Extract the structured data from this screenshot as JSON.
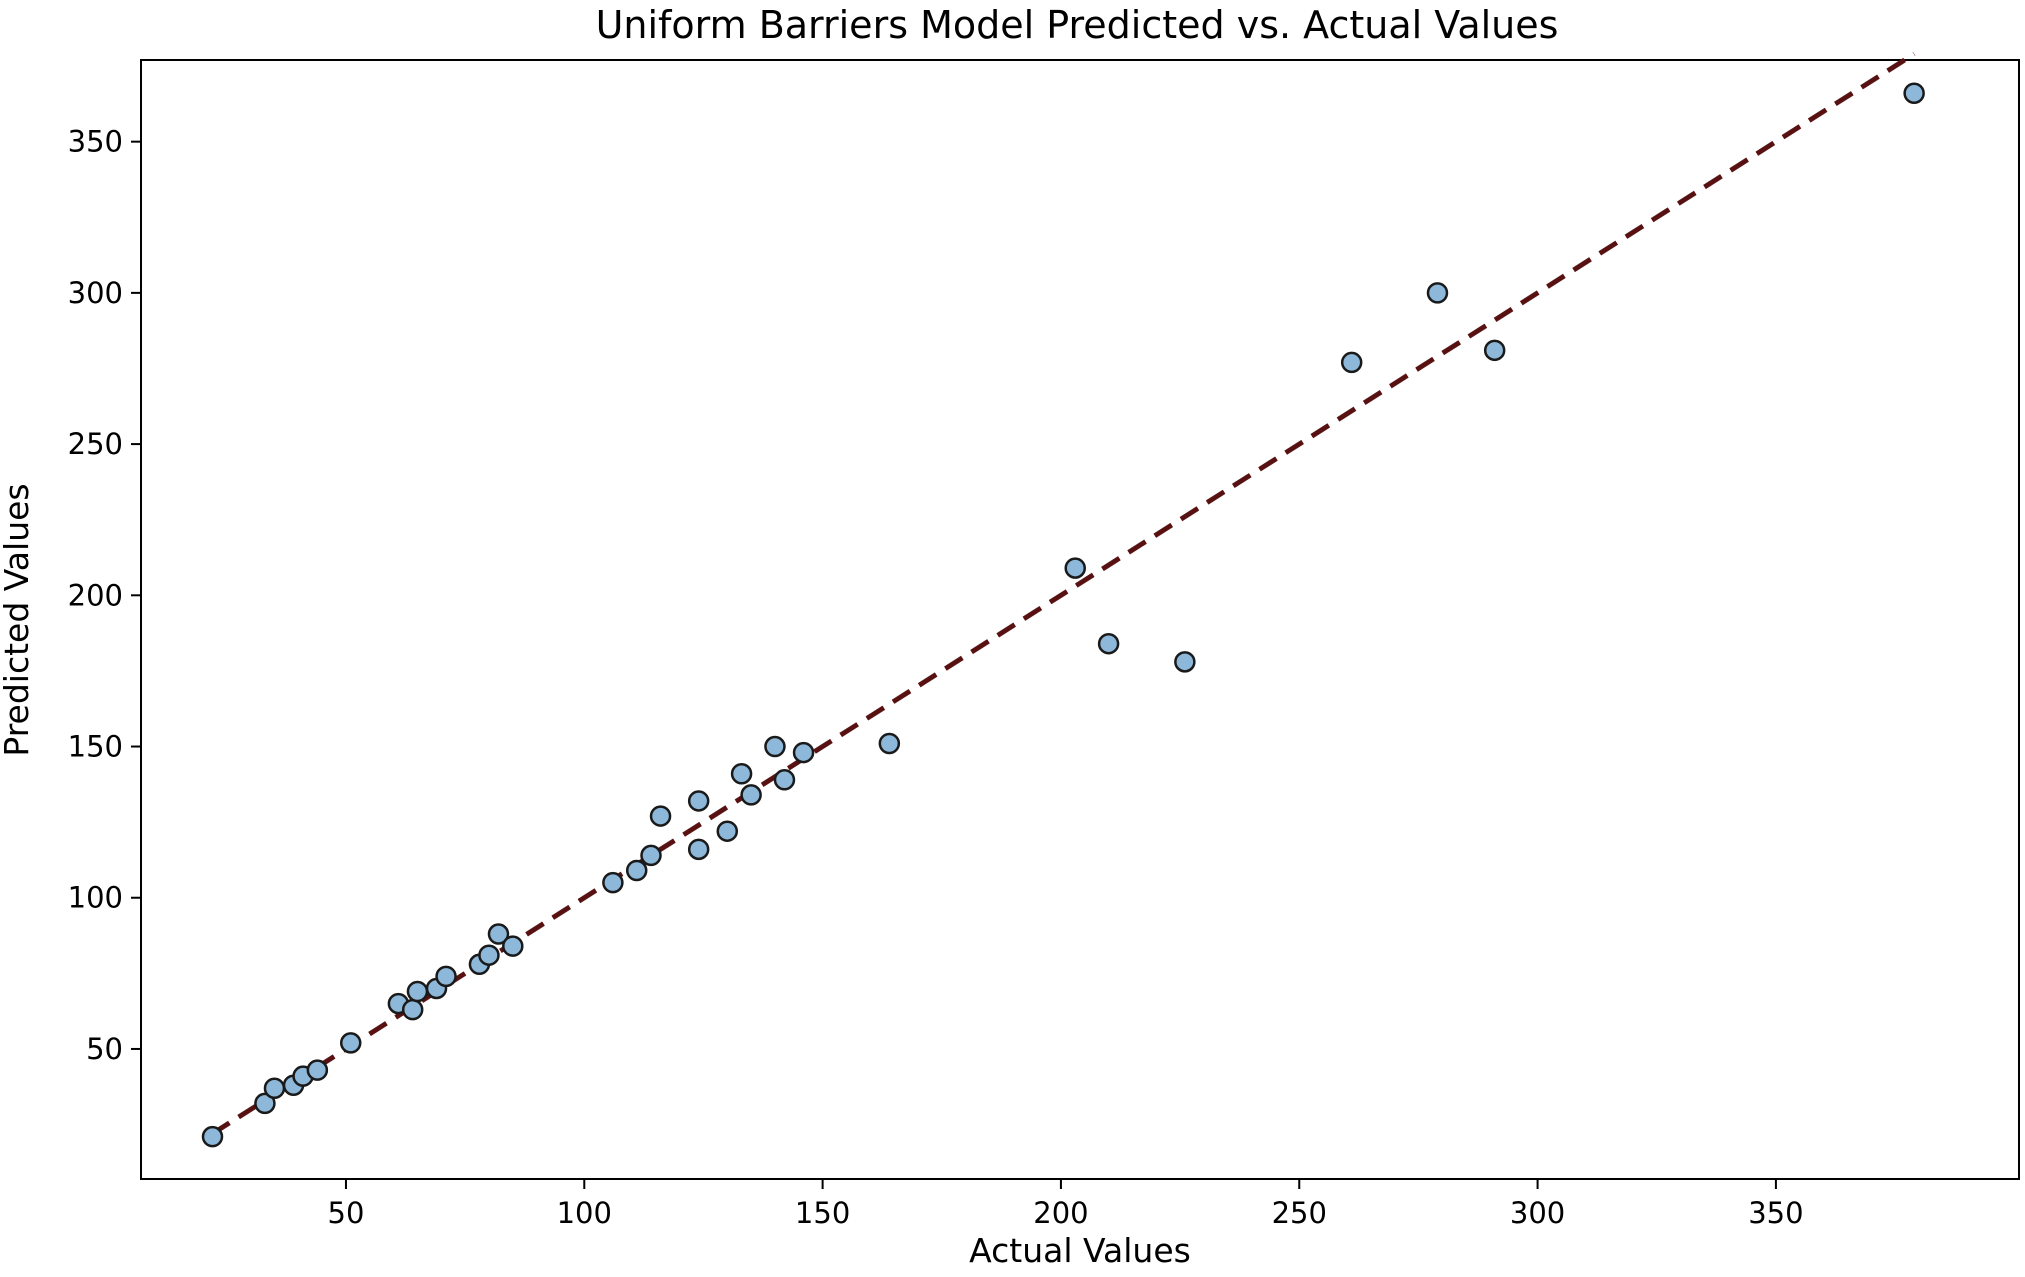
{
  "chart_data": {
    "type": "scatter",
    "title": "Uniform Barriers Model Predicted vs. Actual Values",
    "xlabel": "Actual Values",
    "ylabel": "Predicted Values",
    "xlim": [
      7,
      401
    ],
    "ylim": [
      7,
      377
    ],
    "xticks": [
      50,
      100,
      150,
      200,
      250,
      300,
      350
    ],
    "yticks": [
      50,
      100,
      150,
      200,
      250,
      300,
      350
    ],
    "grid": false,
    "legend": "none",
    "colors": {
      "marker_fill": "#8db8da",
      "marker_edge": "#1a1a1a",
      "reference_line": "#4a0d0d",
      "reference_line_underlay": "#d9303a"
    },
    "reference_line": {
      "x": [
        22,
        379
      ],
      "y": [
        22,
        379
      ],
      "style": "dashed"
    },
    "series": [
      {
        "values": [
          {
            "x": 22,
            "y": 21
          },
          {
            "x": 33,
            "y": 32
          },
          {
            "x": 35,
            "y": 37
          },
          {
            "x": 39,
            "y": 38
          },
          {
            "x": 41,
            "y": 41
          },
          {
            "x": 44,
            "y": 43
          },
          {
            "x": 51,
            "y": 52
          },
          {
            "x": 61,
            "y": 65
          },
          {
            "x": 64,
            "y": 63
          },
          {
            "x": 65,
            "y": 69
          },
          {
            "x": 69,
            "y": 70
          },
          {
            "x": 71,
            "y": 74
          },
          {
            "x": 78,
            "y": 78
          },
          {
            "x": 80,
            "y": 81
          },
          {
            "x": 82,
            "y": 88
          },
          {
            "x": 85,
            "y": 84
          },
          {
            "x": 106,
            "y": 105
          },
          {
            "x": 111,
            "y": 109
          },
          {
            "x": 114,
            "y": 114
          },
          {
            "x": 116,
            "y": 127
          },
          {
            "x": 124,
            "y": 132
          },
          {
            "x": 124,
            "y": 116
          },
          {
            "x": 130,
            "y": 122
          },
          {
            "x": 133,
            "y": 141
          },
          {
            "x": 135,
            "y": 134
          },
          {
            "x": 140,
            "y": 150
          },
          {
            "x": 142,
            "y": 139
          },
          {
            "x": 146,
            "y": 148
          },
          {
            "x": 164,
            "y": 151
          },
          {
            "x": 203,
            "y": 209
          },
          {
            "x": 210,
            "y": 184
          },
          {
            "x": 226,
            "y": 178
          },
          {
            "x": 261,
            "y": 277
          },
          {
            "x": 279,
            "y": 300
          },
          {
            "x": 291,
            "y": 281
          },
          {
            "x": 379,
            "y": 366
          }
        ]
      }
    ]
  }
}
